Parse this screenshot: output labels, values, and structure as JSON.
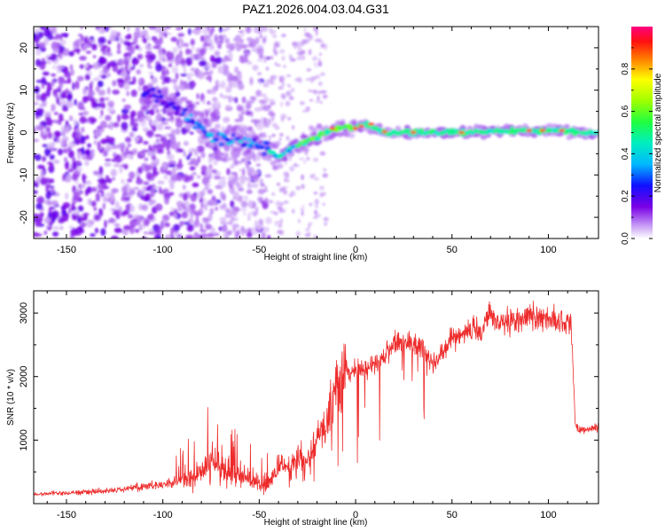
{
  "chart_data": [
    {
      "type": "heatmap",
      "title": "PAZ1.2026.004.03.04.G31",
      "xlabel": "Height of straight line (km)",
      "ylabel": "Frequency (Hz)",
      "xlim": [
        -167,
        126
      ],
      "ylim": [
        -25,
        25
      ],
      "xticks": [
        -150,
        -100,
        -50,
        0,
        50,
        100
      ],
      "yticks": [
        -20,
        -10,
        0,
        10,
        20
      ],
      "colorbar": {
        "label": "Normalized spectral amplitude",
        "range": [
          0,
          1
        ],
        "ticks": [
          0.0,
          0.2,
          0.4,
          0.6,
          0.8
        ]
      },
      "ridge": {
        "description": "frequency peak track vs height",
        "x": [
          -105,
          -95,
          -85,
          -75,
          -65,
          -55,
          -45,
          -40,
          -35,
          -30,
          -25,
          -20,
          -15,
          -10,
          -5,
          0,
          5,
          10,
          15,
          20,
          40,
          60,
          80,
          100,
          126
        ],
        "y": [
          9,
          7,
          3,
          -1,
          -1.5,
          -2,
          -4,
          -6,
          -4,
          -3,
          -2,
          -1,
          0,
          1,
          1,
          1,
          2,
          1,
          0,
          0,
          0,
          0,
          0.5,
          0.5,
          0
        ]
      }
    },
    {
      "type": "line",
      "xlabel": "Height of straight line (km)",
      "ylabel": "SNR (10 * v/v)",
      "xlim": [
        -167,
        126
      ],
      "ylim": [
        0,
        3350
      ],
      "xticks": [
        -150,
        -100,
        -50,
        0,
        50,
        100
      ],
      "yticks": [
        1000,
        2000,
        3000
      ],
      "series": [
        {
          "name": "SNR",
          "color": "#ee2b2b",
          "x": [
            -167,
            -150,
            -135,
            -120,
            -110,
            -100,
            -90,
            -80,
            -75,
            -70,
            -60,
            -50,
            -45,
            -40,
            -35,
            -30,
            -25,
            -20,
            -15,
            -10,
            -5,
            0,
            5,
            10,
            15,
            20,
            25,
            30,
            35,
            40,
            45,
            50,
            55,
            60,
            65,
            70,
            75,
            80,
            85,
            90,
            95,
            100,
            105,
            110,
            112,
            114,
            116,
            120,
            126
          ],
          "values": [
            150,
            170,
            190,
            230,
            280,
            300,
            360,
            470,
            650,
            550,
            460,
            280,
            320,
            600,
            550,
            800,
            650,
            1100,
            1200,
            1900,
            2050,
            2100,
            2100,
            2250,
            2300,
            2550,
            2550,
            2500,
            2450,
            2250,
            2350,
            2600,
            2700,
            2750,
            2650,
            3000,
            2800,
            2850,
            2850,
            3000,
            2900,
            2950,
            2850,
            2850,
            2750,
            1250,
            1150,
            1180,
            1200
          ]
        }
      ]
    }
  ]
}
